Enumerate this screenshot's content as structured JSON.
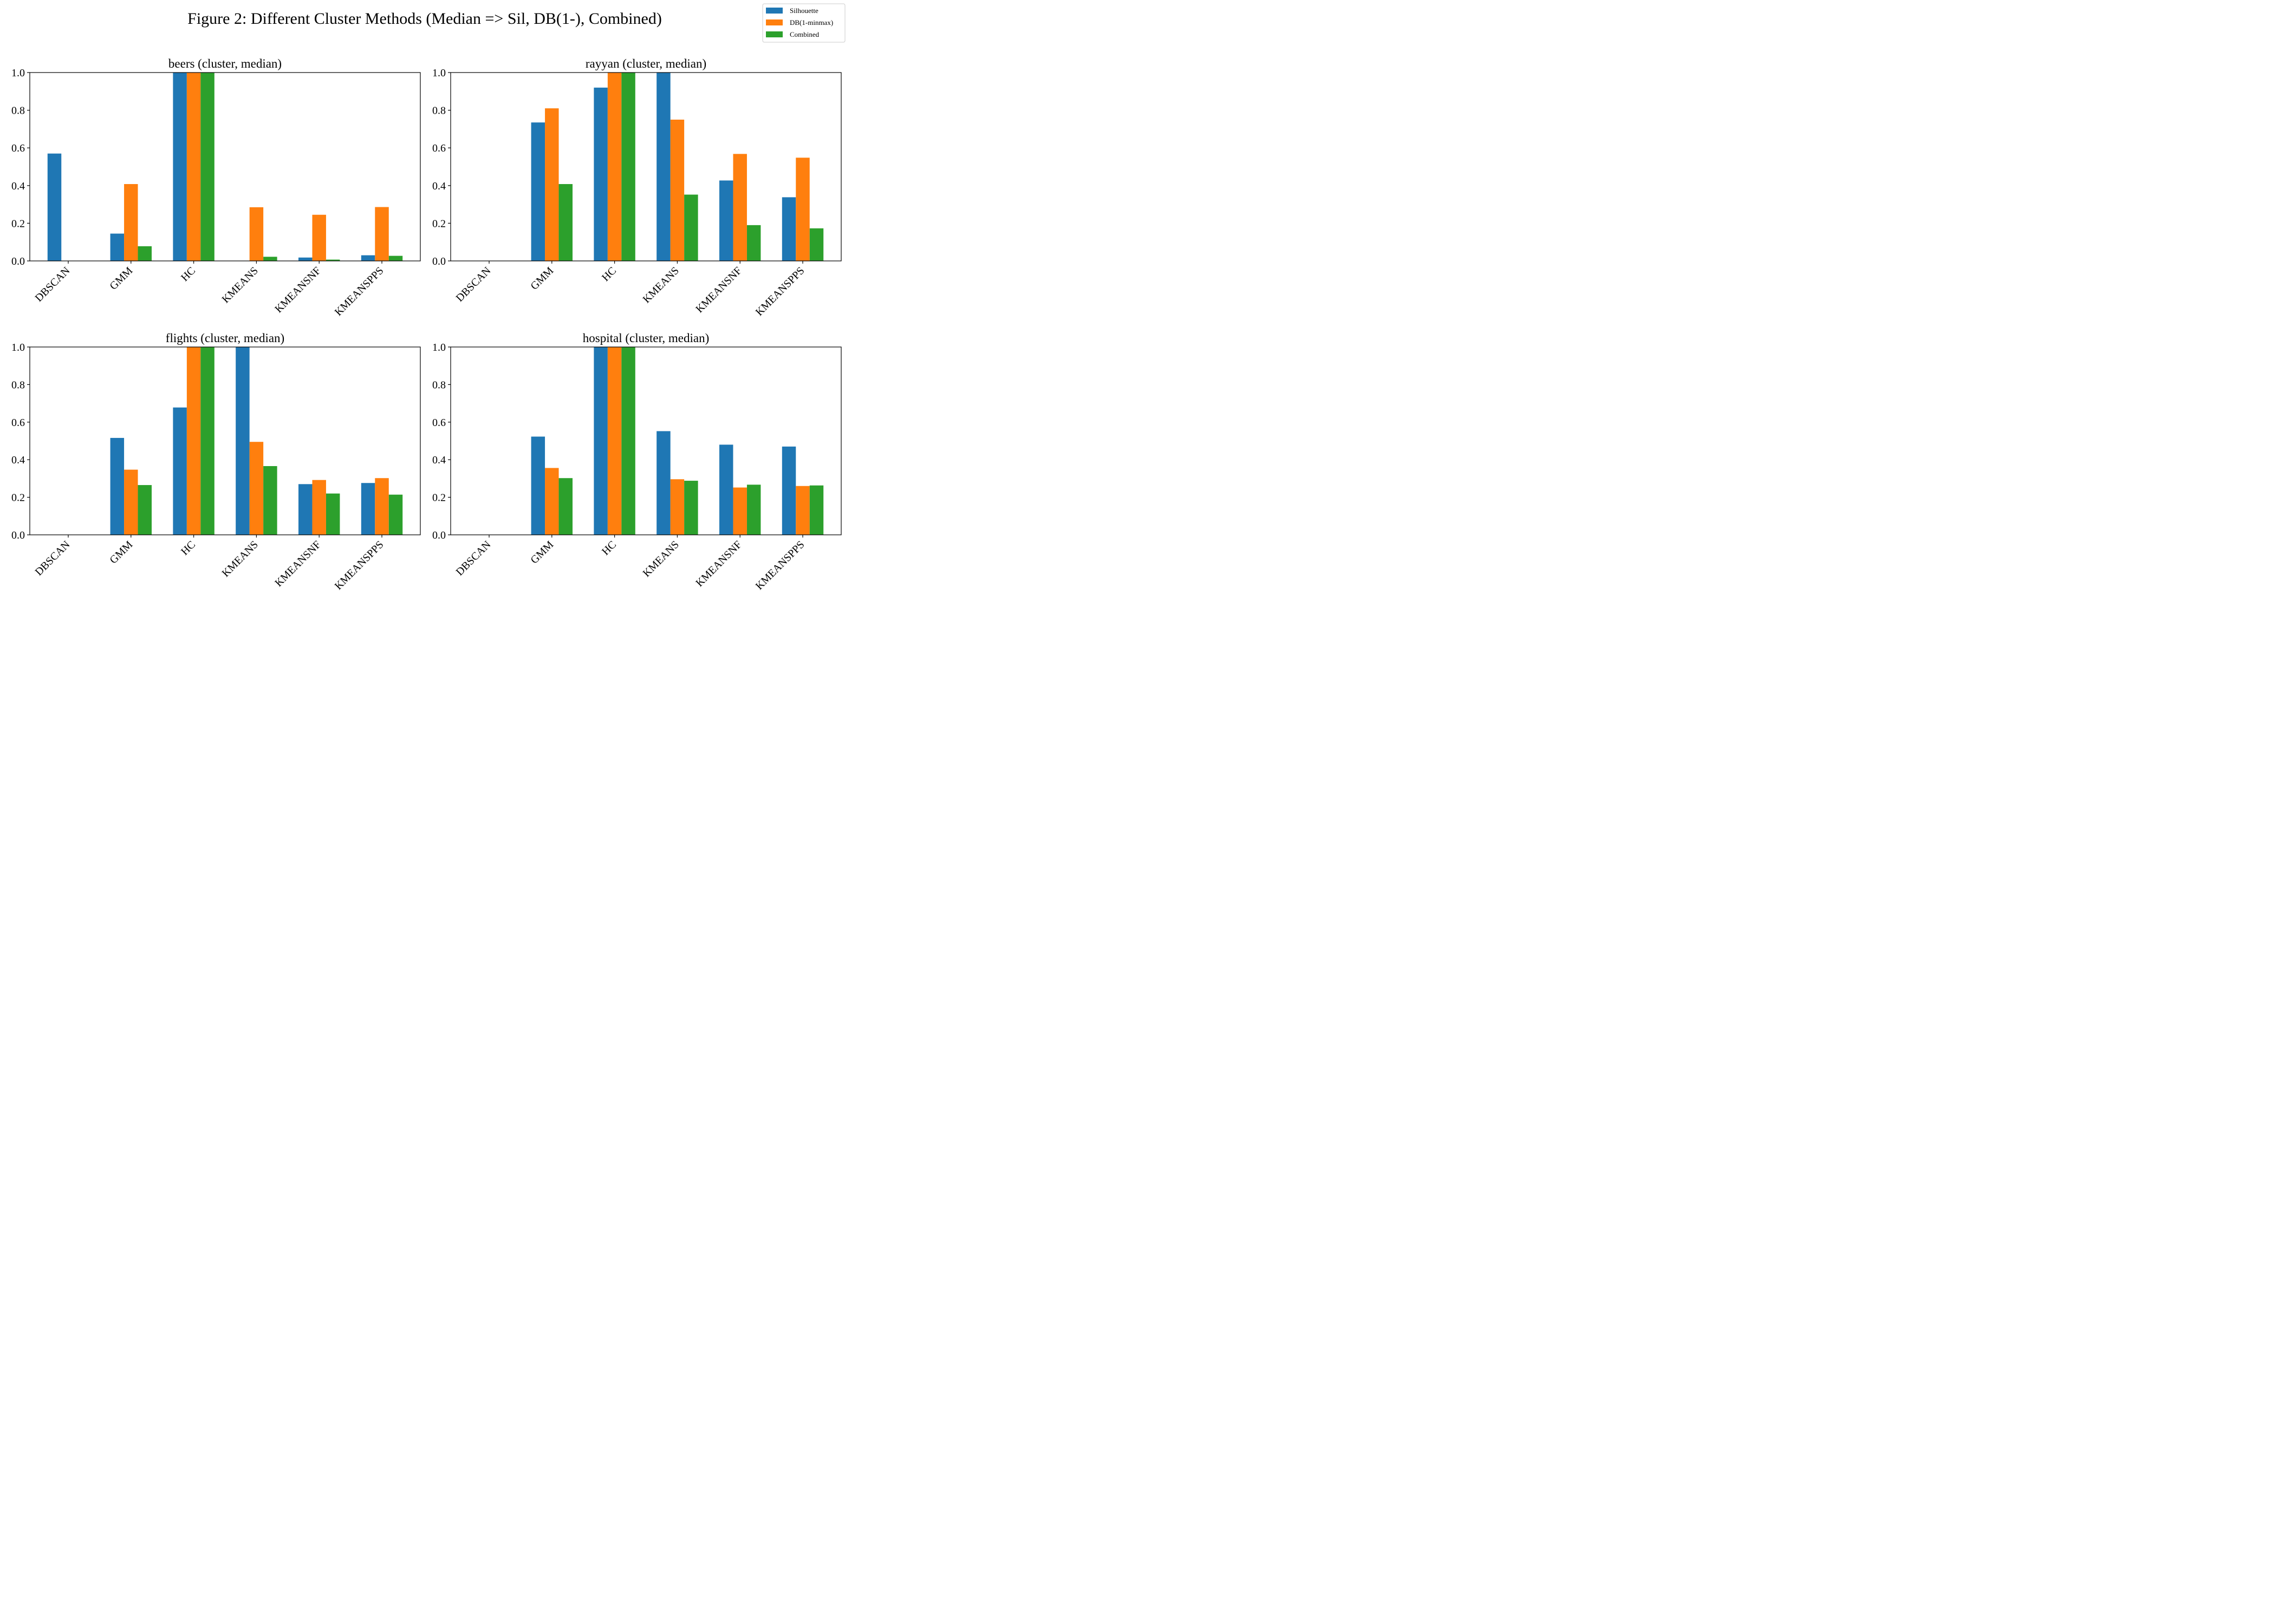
{
  "figure": {
    "title": "Figure 2: Different Cluster Methods (Median => Sil, DB(1-), Combined)"
  },
  "legend": {
    "placement": "top-right",
    "entries": [
      {
        "label": "Silhouette",
        "color": "#1f77b4"
      },
      {
        "label": "DB(1-minmax)",
        "color": "#ff7f0e"
      },
      {
        "label": "Combined",
        "color": "#2ca02c"
      }
    ]
  },
  "chart_data": [
    {
      "type": "bar",
      "title": "beers (cluster, median)",
      "xlabel": "",
      "ylabel": "",
      "ylim": [
        0,
        1.0
      ],
      "yticks": [
        "0.0",
        "0.2",
        "0.4",
        "0.6",
        "0.8",
        "1.0"
      ],
      "grid": false,
      "categories": [
        "DBSCAN",
        "GMM",
        "HC",
        "KMEANS",
        "KMEANSNF",
        "KMEANSPPS"
      ],
      "series": [
        {
          "name": "Silhouette",
          "values": [
            0.57,
            0.145,
            1.0,
            0.0,
            0.018,
            0.03
          ]
        },
        {
          "name": "DB(1-minmax)",
          "values": [
            0.0,
            0.408,
            1.0,
            0.285,
            0.245,
            0.286
          ]
        },
        {
          "name": "Combined",
          "values": [
            0.0,
            0.078,
            1.0,
            0.022,
            0.007,
            0.027
          ]
        }
      ]
    },
    {
      "type": "bar",
      "title": "rayyan (cluster, median)",
      "xlabel": "",
      "ylabel": "",
      "ylim": [
        0,
        1.0
      ],
      "yticks": [
        "0.0",
        "0.2",
        "0.4",
        "0.6",
        "0.8",
        "1.0"
      ],
      "grid": false,
      "categories": [
        "DBSCAN",
        "GMM",
        "HC",
        "KMEANS",
        "KMEANSNF",
        "KMEANSPPS"
      ],
      "series": [
        {
          "name": "Silhouette",
          "values": [
            0.0,
            0.735,
            0.92,
            1.0,
            0.427,
            0.338
          ]
        },
        {
          "name": "DB(1-minmax)",
          "values": [
            0.0,
            0.81,
            1.0,
            0.75,
            0.568,
            0.548
          ]
        },
        {
          "name": "Combined",
          "values": [
            0.0,
            0.408,
            1.0,
            0.352,
            0.19,
            0.173
          ]
        }
      ]
    },
    {
      "type": "bar",
      "title": "flights (cluster, median)",
      "xlabel": "",
      "ylabel": "",
      "ylim": [
        0,
        1.0
      ],
      "yticks": [
        "0.0",
        "0.2",
        "0.4",
        "0.6",
        "0.8",
        "1.0"
      ],
      "grid": false,
      "categories": [
        "DBSCAN",
        "GMM",
        "HC",
        "KMEANS",
        "KMEANSNF",
        "KMEANSPPS"
      ],
      "series": [
        {
          "name": "Silhouette",
          "values": [
            0.0,
            0.516,
            0.678,
            1.0,
            0.27,
            0.276
          ]
        },
        {
          "name": "DB(1-minmax)",
          "values": [
            0.0,
            0.347,
            1.0,
            0.495,
            0.292,
            0.302
          ]
        },
        {
          "name": "Combined",
          "values": [
            0.0,
            0.265,
            1.0,
            0.366,
            0.22,
            0.214
          ]
        }
      ]
    },
    {
      "type": "bar",
      "title": "hospital (cluster, median)",
      "xlabel": "",
      "ylabel": "",
      "ylim": [
        0,
        1.0
      ],
      "yticks": [
        "0.0",
        "0.2",
        "0.4",
        "0.6",
        "0.8",
        "1.0"
      ],
      "grid": false,
      "categories": [
        "DBSCAN",
        "GMM",
        "HC",
        "KMEANS",
        "KMEANSNF",
        "KMEANSPPS"
      ],
      "series": [
        {
          "name": "Silhouette",
          "values": [
            0.0,
            0.523,
            1.0,
            0.552,
            0.48,
            0.47
          ]
        },
        {
          "name": "DB(1-minmax)",
          "values": [
            0.0,
            0.356,
            1.0,
            0.296,
            0.252,
            0.26
          ]
        },
        {
          "name": "Combined",
          "values": [
            0.0,
            0.302,
            1.0,
            0.288,
            0.267,
            0.263
          ]
        }
      ]
    }
  ]
}
